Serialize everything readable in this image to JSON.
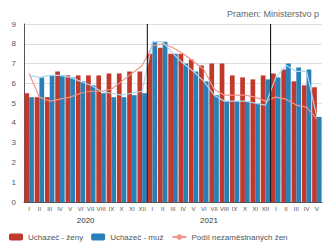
{
  "chart_data": {
    "type": "bar",
    "title": "Pramen: Ministerstvo p",
    "categories": [
      "I",
      "II",
      "III",
      "IV",
      "V",
      "VI",
      "VII",
      "VIII",
      "IX",
      "X",
      "XI",
      "XII",
      "I",
      "II",
      "III",
      "IV",
      "V",
      "VI",
      "VII",
      "VIII",
      "IX",
      "X",
      "XI",
      "XII",
      "I",
      "II",
      "III",
      "IV",
      "V"
    ],
    "series": [
      {
        "name": "Uchazeč - ženy",
        "type": "bar",
        "color": "#C0392B",
        "values": [
          5.5,
          5.3,
          5.3,
          6.6,
          6.4,
          6.4,
          6.4,
          6.4,
          6.5,
          6.5,
          6.6,
          6.6,
          7.5,
          7.8,
          7.5,
          7.5,
          7.2,
          6.9,
          7.0,
          7.0,
          6.4,
          6.3,
          6.2,
          6.4,
          6.5,
          6.7,
          6.1,
          5.9,
          5.8
        ]
      },
      {
        "name": "Uchazeč - muž",
        "type": "bar",
        "color": "#2980B9",
        "values": [
          5.3,
          6.3,
          6.4,
          6.4,
          6.3,
          6.1,
          5.9,
          5.5,
          5.3,
          5.3,
          5.4,
          5.5,
          8.1,
          8.1,
          7.5,
          7.0,
          6.6,
          6.1,
          5.4,
          5.1,
          5.1,
          5.1,
          5.0,
          6.2,
          6.3,
          7.0,
          6.8,
          6.7,
          4.3
        ]
      },
      {
        "name": "Podíl nezaměstnaných žen",
        "type": "line",
        "color": "#F1948A",
        "values": [
          6.5,
          5.3,
          5.1,
          5.2,
          5.3,
          5.5,
          5.6,
          5.6,
          5.7,
          6.1,
          6.5,
          6.9,
          7.9,
          8.0,
          7.8,
          7.5,
          7.1,
          6.7,
          5.7,
          5.4,
          5.4,
          5.4,
          5.3,
          5.1,
          5.3,
          5.2,
          4.9,
          4.8,
          4.2
        ]
      },
      {
        "type": "line",
        "color": "#AED6F1",
        "values": [
          6.4,
          6.3,
          6.4,
          6.4,
          6.3,
          6.1,
          5.9,
          5.6,
          5.5,
          5.4,
          5.5,
          5.6,
          8.1,
          8.1,
          7.5,
          7.0,
          6.6,
          6.1,
          5.4,
          5.1,
          5.1,
          5.1,
          5.0,
          4.9,
          6.3,
          6.9,
          6.6,
          6.6,
          4.3
        ]
      }
    ],
    "ylim": [
      0,
      9
    ],
    "yticks": [
      0,
      1,
      2,
      3,
      4,
      5,
      6,
      7,
      8,
      9
    ],
    "grid": true,
    "legend": "lower left",
    "annotations": [
      "2020",
      "2021"
    ]
  }
}
